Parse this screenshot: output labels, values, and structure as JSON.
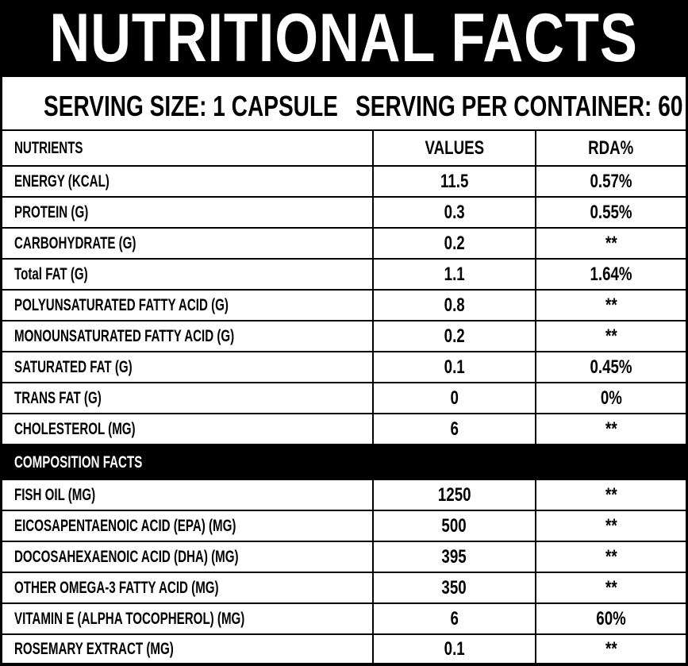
{
  "header": {
    "title": "NUTRITIONAL FACTS"
  },
  "serving": {
    "size": "SERVING SIZE: 1 CAPSULE",
    "per_container": "SERVING PER CONTAINER: 60"
  },
  "table": {
    "columns": [
      "NUTRIENTS",
      "VALUES",
      "RDA%"
    ],
    "rows": [
      [
        "ENERGY (KCAL)",
        "11.5",
        "0.57%"
      ],
      [
        "PROTEIN (G)",
        "0.3",
        "0.55%"
      ],
      [
        "CARBOHYDRATE (G)",
        "0.2",
        "**"
      ],
      [
        "Total FAT (G)",
        "1.1",
        "1.64%"
      ],
      [
        "POLYUNSATURATED FATTY ACID (G)",
        "0.8",
        "**"
      ],
      [
        "MONOUNSATURATED FATTY ACID (G)",
        "0.2",
        "**"
      ],
      [
        "SATURATED FAT (G)",
        "0.1",
        "0.45%"
      ],
      [
        "TRANS FAT (G)",
        "0",
        "0%"
      ],
      [
        "CHOLESTEROL (MG)",
        "6",
        "**"
      ]
    ]
  },
  "composition": {
    "title": "COMPOSITION FACTS",
    "rows": [
      [
        "FISH OIL (MG)",
        "1250",
        "**"
      ],
      [
        "EICOSAPENTAENOIC ACID (EPA) (MG)",
        "500",
        "**"
      ],
      [
        "DOCOSAHEXAENOIC ACID (DHA) (MG)",
        "395",
        "**"
      ],
      [
        "OTHER OMEGA-3 FATTY ACID (MG)",
        "350",
        "**"
      ],
      [
        "VITAMIN E (ALPHA TOCOPHEROL) (MG)",
        "6",
        "60%"
      ],
      [
        "ROSEMARY EXTRACT (MG)",
        "0.1",
        "**"
      ]
    ]
  }
}
